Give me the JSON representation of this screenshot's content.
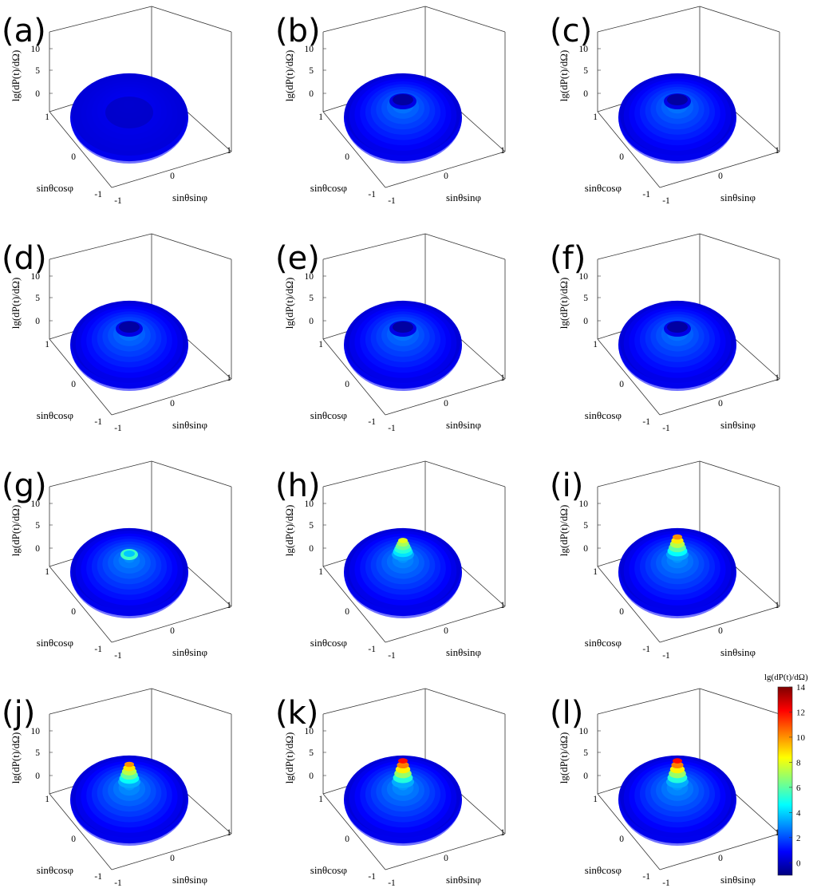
{
  "chart_data": {
    "type": "surface3d",
    "panel_labels": [
      "(a)",
      "(b)",
      "(c)",
      "(d)",
      "(e)",
      "(f)",
      "(g)",
      "(h)",
      "(i)",
      "(j)",
      "(k)",
      "(l)"
    ],
    "zlabel": "lg(dP(t)/dΩ)",
    "xlabel": "sinθcosφ",
    "ylabel": "sinθsinφ",
    "z_ticks": [
      "0",
      "5",
      "10"
    ],
    "x_ticks": [
      "-1",
      "0",
      "1"
    ],
    "y_ticks": [
      "-1",
      "0",
      "1"
    ],
    "zlim": [
      -1,
      14
    ],
    "panels": [
      {
        "label": "(a)",
        "torus_height": 1.5,
        "hole": "dark",
        "peak": 0
      },
      {
        "label": "(b)",
        "torus_height": 3.0,
        "hole": "open",
        "peak": 0
      },
      {
        "label": "(c)",
        "torus_height": 3.0,
        "hole": "open",
        "peak": 0
      },
      {
        "label": "(d)",
        "torus_height": 3.0,
        "hole": "open",
        "peak": 0
      },
      {
        "label": "(e)",
        "torus_height": 3.0,
        "hole": "open",
        "peak": 0
      },
      {
        "label": "(f)",
        "torus_height": 3.0,
        "hole": "open",
        "peak": 0
      },
      {
        "label": "(g)",
        "torus_height": 3.2,
        "hole": "small",
        "peak": 0
      },
      {
        "label": "(h)",
        "torus_height": 3.3,
        "hole": "none",
        "peak": 8
      },
      {
        "label": "(i)",
        "torus_height": 3.3,
        "hole": "none",
        "peak": 10
      },
      {
        "label": "(j)",
        "torus_height": 3.4,
        "hole": "none",
        "peak": 10
      },
      {
        "label": "(k)",
        "torus_height": 3.4,
        "hole": "none",
        "peak": 12
      },
      {
        "label": "(l)",
        "torus_height": 3.4,
        "hole": "none",
        "peak": 12
      }
    ],
    "colorbar": {
      "title": "lg(dP(t)/dΩ)",
      "ticks": [
        "14",
        "12",
        "10",
        "8",
        "6",
        "4",
        "2",
        "0"
      ],
      "range": [
        -1,
        14
      ],
      "colormap": "jet"
    },
    "colors": {
      "jet": [
        "#00007f",
        "#0000ff",
        "#0080ff",
        "#00ffff",
        "#80ff80",
        "#ffff00",
        "#ff8000",
        "#ff0000",
        "#7f0000"
      ]
    }
  }
}
